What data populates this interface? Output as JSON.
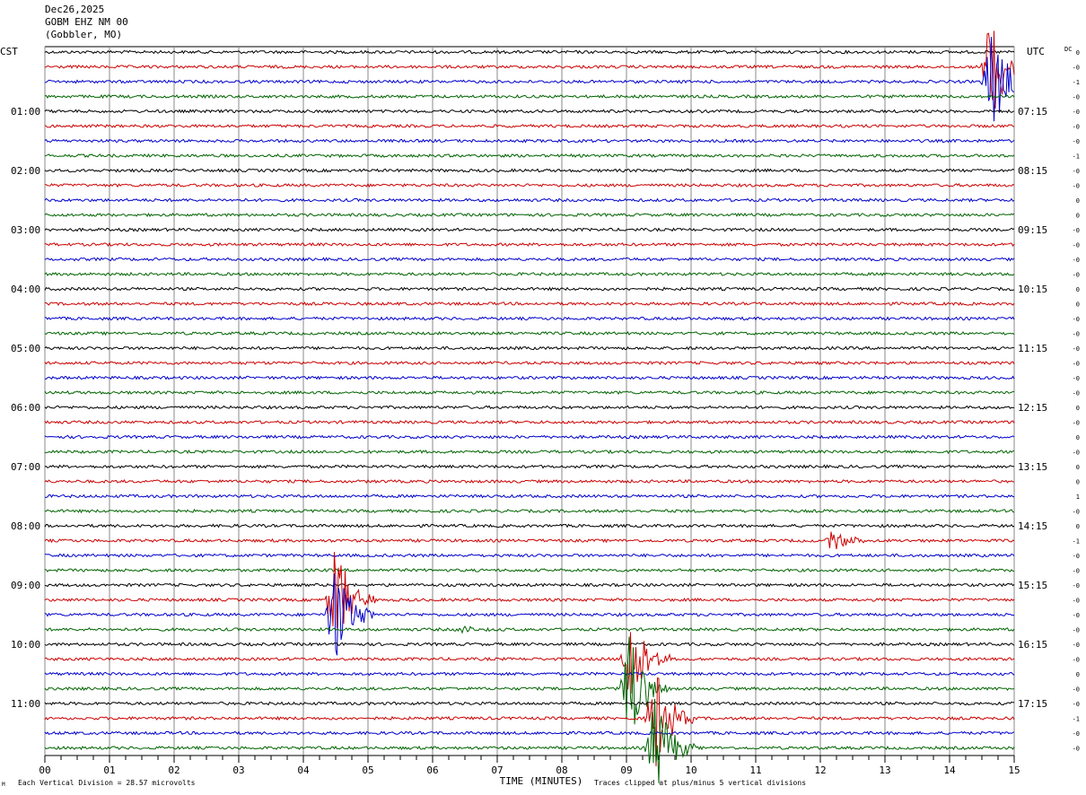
{
  "header": {
    "date": "Dec26,2025",
    "station": "GOBM EHZ NM 00",
    "location": "(Gobbler, MO)"
  },
  "chart_data": {
    "type": "line",
    "xlabel": "TIME (MINUTES)",
    "xlim": [
      0,
      15
    ],
    "x_ticks": [
      "00",
      "01",
      "02",
      "03",
      "04",
      "05",
      "06",
      "07",
      "08",
      "09",
      "10",
      "11",
      "12",
      "13",
      "14",
      "15"
    ],
    "left_axis_label": "CST",
    "right_axis_label": "UTC",
    "dc_label": "DC",
    "left_time_labels": [
      "01:00",
      "02:00",
      "03:00",
      "04:00",
      "05:00",
      "06:00",
      "07:00",
      "08:00",
      "09:00",
      "10:00",
      "11:00"
    ],
    "right_time_labels": [
      "07:15",
      "08:15",
      "09:15",
      "10:15",
      "11:15",
      "12:15",
      "13:15",
      "14:15",
      "15:15",
      "16:15",
      "17:15"
    ],
    "trace_count": 48,
    "trace_colors": [
      "#000000",
      "#cc0000",
      "#0000cc",
      "#006400"
    ],
    "dc_offsets": [
      "0",
      "-0",
      "-1",
      "-0",
      "-0",
      "-0",
      "-0",
      "-1",
      "-0",
      "-0",
      "0",
      "0",
      "-0",
      "-0",
      "-0",
      "-0",
      "0",
      "0",
      "-0",
      "-0",
      "-0",
      "-0",
      "-0",
      "-0",
      "0",
      "-0",
      "0",
      "-0",
      "0",
      "0",
      "1",
      "-0",
      "0",
      "-1",
      "-0",
      "-0",
      "-0",
      "-0",
      "-0",
      "-0",
      "-0",
      "-0",
      "0",
      "-0",
      "-0",
      "-1",
      "-0",
      "-0"
    ],
    "events": [
      {
        "trace": 1,
        "minute": 14.65,
        "amplitude": "clipped"
      },
      {
        "trace": 2,
        "minute": 14.65,
        "amplitude": "clipped"
      },
      {
        "trace": 33,
        "minute": 12.2,
        "amplitude": "moderate"
      },
      {
        "trace": 37,
        "minute": 4.5,
        "amplitude": "clipped"
      },
      {
        "trace": 38,
        "minute": 4.5,
        "amplitude": "clipped"
      },
      {
        "trace": 39,
        "minute": 6.5,
        "amplitude": "small"
      },
      {
        "trace": 41,
        "minute": 9.05,
        "amplitude": "clipped"
      },
      {
        "trace": 43,
        "minute": 9.05,
        "amplitude": "clipped"
      },
      {
        "trace": 47,
        "minute": 9.45,
        "amplitude": "clipped"
      },
      {
        "trace": 45,
        "minute": 9.45,
        "amplitude": "clipped"
      }
    ],
    "grid": "vertical minute lines"
  },
  "footer": {
    "scale_note": "Each Vertical Division =   28.57 microvolts",
    "clip_note": "Traces clipped at plus/minus 5 vertical divisions",
    "corner_mark": "M"
  }
}
